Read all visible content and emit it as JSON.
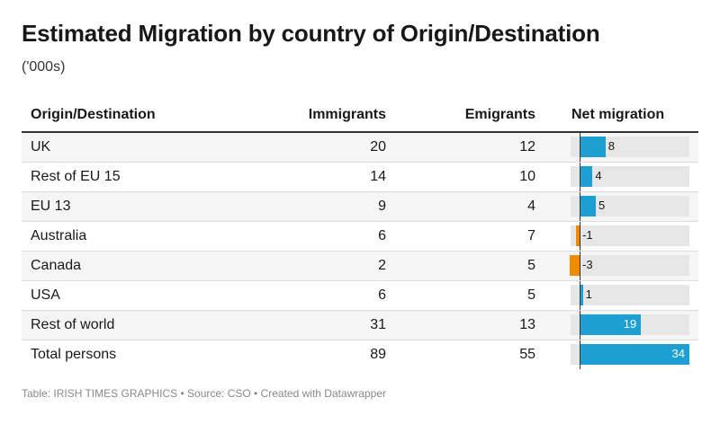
{
  "title": "Estimated Migration by country of Origin/Destination",
  "subtitle": "('000s)",
  "footer": "Table: IRISH TIMES GRAPHICS • Source: CSO • Created with Datawrapper",
  "colors": {
    "positive": "#1e9fd2",
    "negative": "#f08a00",
    "track": "#e6e6e6"
  },
  "chart_data": {
    "type": "table",
    "columns": [
      "Origin/Destination",
      "Immigrants",
      "Emigrants",
      "Net migration"
    ],
    "net_range": [
      -3,
      34
    ],
    "rows": [
      {
        "origin": "UK",
        "immigrants": 20,
        "emigrants": 12,
        "net": 8
      },
      {
        "origin": "Rest of EU 15",
        "immigrants": 14,
        "emigrants": 10,
        "net": 4
      },
      {
        "origin": "EU 13",
        "immigrants": 9,
        "emigrants": 4,
        "net": 5
      },
      {
        "origin": "Australia",
        "immigrants": 6,
        "emigrants": 7,
        "net": -1
      },
      {
        "origin": "Canada",
        "immigrants": 2,
        "emigrants": 5,
        "net": -3
      },
      {
        "origin": "USA",
        "immigrants": 6,
        "emigrants": 5,
        "net": 1
      },
      {
        "origin": "Rest of world",
        "immigrants": 31,
        "emigrants": 13,
        "net": 19
      },
      {
        "origin": "Total persons",
        "immigrants": 89,
        "emigrants": 55,
        "net": 34
      }
    ]
  }
}
